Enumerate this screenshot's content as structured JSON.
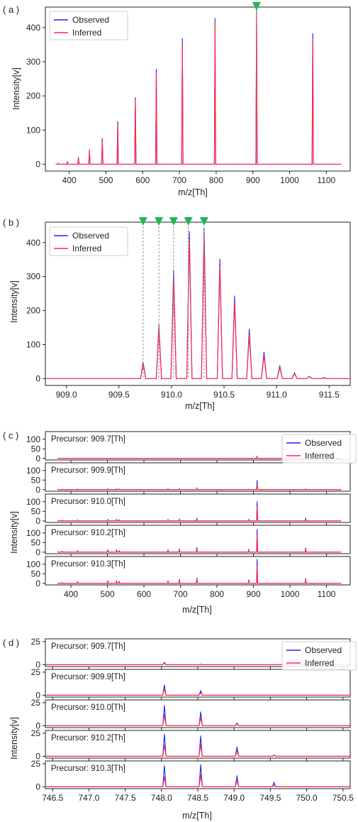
{
  "colors": {
    "observed": "#1f1fff",
    "inferred": "#ff2a4a",
    "marker": "#1db954",
    "frame": "#222222"
  },
  "chart_data": [
    {
      "id": "a",
      "panel_label": "( a )",
      "type": "line",
      "xlabel": "m/z[Th]",
      "ylabel": "Intensity[v]",
      "xlim": [
        335,
        1165
      ],
      "ylim": [
        -20,
        460
      ],
      "xticks": [
        400,
        500,
        600,
        700,
        800,
        900,
        1000,
        1100
      ],
      "yticks": [
        0,
        100,
        200,
        300,
        400
      ],
      "legend": {
        "entries": [
          "Observed",
          "Inferred"
        ],
        "loc": "upper-left"
      },
      "baseline_range": [
        363,
        1140
      ],
      "peak_width": 1.8,
      "markers": [
        910
      ],
      "series": [
        {
          "name": "Observed",
          "peaks": [
            [
              370,
              3
            ],
            [
              395,
              8
            ],
            [
              425,
              20
            ],
            [
              455,
              42
            ],
            [
              490,
              75
            ],
            [
              532,
              125
            ],
            [
              580,
              195
            ],
            [
              637,
              278
            ],
            [
              708,
              368
            ],
            [
              797,
              427
            ],
            [
              910,
              450
            ],
            [
              1063,
              383
            ]
          ]
        },
        {
          "name": "Inferred",
          "peaks": [
            [
              370,
              3
            ],
            [
              395,
              7
            ],
            [
              425,
              18
            ],
            [
              455,
              38
            ],
            [
              490,
              70
            ],
            [
              532,
              115
            ],
            [
              580,
              185
            ],
            [
              637,
              265
            ],
            [
              708,
              350
            ],
            [
              797,
              415
            ],
            [
              910,
              440
            ],
            [
              1063,
              365
            ]
          ]
        }
      ]
    },
    {
      "id": "b",
      "panel_label": "( b )",
      "type": "line",
      "xlabel": "m/z[Th]",
      "ylabel": "Intensity[v]",
      "xlim": [
        908.8,
        911.7
      ],
      "ylim": [
        -20,
        460
      ],
      "xticks": [
        909.0,
        909.5,
        910.0,
        910.5,
        911.0,
        911.5
      ],
      "yticks": [
        0,
        100,
        200,
        300,
        400
      ],
      "legend": {
        "entries": [
          "Observed",
          "Inferred"
        ],
        "loc": "upper-left"
      },
      "baseline_range": [
        908.8,
        911.7
      ],
      "peak_width": 0.025,
      "markers": [
        909.73,
        909.88,
        910.02,
        910.16,
        910.31
      ],
      "series": [
        {
          "name": "Observed",
          "peaks": [
            [
              909.73,
              48
            ],
            [
              909.88,
              158
            ],
            [
              910.02,
              320
            ],
            [
              910.17,
              432
            ],
            [
              910.31,
              440
            ],
            [
              910.46,
              352
            ],
            [
              910.6,
              243
            ],
            [
              910.74,
              145
            ],
            [
              910.88,
              78
            ],
            [
              911.03,
              38
            ],
            [
              911.17,
              17
            ],
            [
              911.31,
              7
            ],
            [
              911.45,
              3
            ]
          ]
        },
        {
          "name": "Inferred",
          "peaks": [
            [
              909.73,
              42
            ],
            [
              909.88,
              150
            ],
            [
              910.02,
              295
            ],
            [
              910.17,
              405
            ],
            [
              910.31,
              418
            ],
            [
              910.46,
              330
            ],
            [
              910.6,
              225
            ],
            [
              910.74,
              128
            ],
            [
              910.88,
              68
            ],
            [
              911.03,
              33
            ],
            [
              911.17,
              15
            ],
            [
              911.31,
              6
            ],
            [
              911.45,
              2
            ]
          ]
        }
      ]
    },
    {
      "id": "c",
      "panel_label": "( c )",
      "type": "line",
      "xlabel": "m/z[Th]",
      "ylabel": "Intensity[v]",
      "xlim": [
        330,
        1165
      ],
      "ylim": [
        -8,
        140
      ],
      "xticks": [
        400,
        500,
        600,
        700,
        800,
        900,
        1000,
        1100
      ],
      "yticks": [
        0,
        50,
        100
      ],
      "legend": {
        "entries": [
          "Observed",
          "Inferred"
        ],
        "loc": "upper-right"
      },
      "baseline_range": [
        363,
        1140
      ],
      "peak_width": 1.5,
      "subplots": [
        {
          "precursor": "Precursor: 909.7[Th]",
          "series": [
            {
              "name": "Observed",
              "peaks": [
                [
                  910,
                  12
                ]
              ]
            },
            {
              "name": "Inferred",
              "peaks": [
                [
                  910,
                  10
                ]
              ]
            }
          ]
        },
        {
          "precursor": "Precursor: 909.9[Th]",
          "series": [
            {
              "name": "Observed",
              "peaks": [
                [
                  376,
                  3
                ],
                [
                  418,
                  4
                ],
                [
                  501,
                  5
                ],
                [
                  525,
                  5
                ],
                [
                  532,
                  4
                ],
                [
                  666,
                  5
                ],
                [
                  697,
                  6
                ],
                [
                  745,
                  10
                ],
                [
                  887,
                  3
                ],
                [
                  910,
                  48
                ],
                [
                  1043,
                  5
                ]
              ]
            },
            {
              "name": "Inferred",
              "peaks": [
                [
                  376,
                  2
                ],
                [
                  418,
                  3
                ],
                [
                  501,
                  4
                ],
                [
                  525,
                  4
                ],
                [
                  532,
                  3
                ],
                [
                  666,
                  4
                ],
                [
                  697,
                  5
                ],
                [
                  745,
                  7
                ],
                [
                  887,
                  2
                ],
                [
                  910,
                  28
                ],
                [
                  1043,
                  4
                ]
              ]
            }
          ]
        },
        {
          "precursor": "Precursor: 910.0[Th]",
          "series": [
            {
              "name": "Observed",
              "peaks": [
                [
                  376,
                  4
                ],
                [
                  418,
                  6
                ],
                [
                  501,
                  8
                ],
                [
                  525,
                  9
                ],
                [
                  532,
                  6
                ],
                [
                  666,
                  8
                ],
                [
                  697,
                  10
                ],
                [
                  745,
                  15
                ],
                [
                  887,
                  8
                ],
                [
                  910,
                  100
                ],
                [
                  1043,
                  15
                ]
              ]
            },
            {
              "name": "Inferred",
              "peaks": [
                [
                  376,
                  3
                ],
                [
                  418,
                  5
                ],
                [
                  501,
                  6
                ],
                [
                  525,
                  7
                ],
                [
                  532,
                  5
                ],
                [
                  666,
                  6
                ],
                [
                  697,
                  8
                ],
                [
                  745,
                  11
                ],
                [
                  887,
                  6
                ],
                [
                  910,
                  75
                ],
                [
                  1043,
                  11
                ]
              ]
            }
          ]
        },
        {
          "precursor": "Precursor: 910.2[Th]",
          "series": [
            {
              "name": "Observed",
              "peaks": [
                [
                  376,
                  5
                ],
                [
                  418,
                  8
                ],
                [
                  501,
                  12
                ],
                [
                  525,
                  13
                ],
                [
                  532,
                  9
                ],
                [
                  666,
                  12
                ],
                [
                  697,
                  17
                ],
                [
                  745,
                  25
                ],
                [
                  887,
                  15
                ],
                [
                  910,
                  118
                ],
                [
                  1043,
                  22
                ]
              ]
            },
            {
              "name": "Inferred",
              "peaks": [
                [
                  376,
                  4
                ],
                [
                  418,
                  6
                ],
                [
                  501,
                  9
                ],
                [
                  525,
                  10
                ],
                [
                  532,
                  7
                ],
                [
                  666,
                  9
                ],
                [
                  697,
                  13
                ],
                [
                  745,
                  18
                ],
                [
                  887,
                  11
                ],
                [
                  910,
                  88
                ],
                [
                  1043,
                  16
                ]
              ]
            }
          ]
        },
        {
          "precursor": "Precursor: 910.3[Th]",
          "series": [
            {
              "name": "Observed",
              "peaks": [
                [
                  376,
                  6
                ],
                [
                  418,
                  9
                ],
                [
                  501,
                  14
                ],
                [
                  525,
                  15
                ],
                [
                  532,
                  11
                ],
                [
                  666,
                  14
                ],
                [
                  697,
                  20
                ],
                [
                  745,
                  28
                ],
                [
                  887,
                  18
                ],
                [
                  910,
                  125
                ],
                [
                  1043,
                  25
                ]
              ]
            },
            {
              "name": "Inferred",
              "peaks": [
                [
                  376,
                  5
                ],
                [
                  418,
                  7
                ],
                [
                  501,
                  11
                ],
                [
                  525,
                  12
                ],
                [
                  532,
                  8
                ],
                [
                  666,
                  11
                ],
                [
                  697,
                  15
                ],
                [
                  745,
                  21
                ],
                [
                  887,
                  13
                ],
                [
                  910,
                  92
                ],
                [
                  1043,
                  19
                ]
              ]
            }
          ]
        }
      ]
    },
    {
      "id": "d",
      "panel_label": "( d )",
      "type": "line",
      "xlabel": "m/z[Th]",
      "ylabel": "Intensity[v]",
      "xlim": [
        746.4,
        750.6
      ],
      "ylim": [
        -2,
        28
      ],
      "xticks": [
        746.5,
        747.0,
        747.5,
        748.0,
        748.5,
        749.0,
        749.5,
        750.0,
        750.5
      ],
      "yticks": [
        0,
        25
      ],
      "legend": {
        "entries": [
          "Observed",
          "Inferred"
        ],
        "loc": "upper-right"
      },
      "baseline_range": [
        746.4,
        750.6
      ],
      "peak_width": 0.022,
      "subplots": [
        {
          "precursor": "Precursor: 909.7[Th]",
          "series": [
            {
              "name": "Observed",
              "peaks": [
                [
                  748.04,
                  2.5
                ],
                [
                  748.54,
                  0.6
                ]
              ]
            },
            {
              "name": "Inferred",
              "peaks": [
                [
                  748.04,
                  1.5
                ],
                [
                  748.54,
                  0.4
                ]
              ]
            }
          ]
        },
        {
          "precursor": "Precursor: 909.9[Th]",
          "series": [
            {
              "name": "Observed",
              "peaks": [
                [
                  748.04,
                  11
                ],
                [
                  748.54,
                  5
                ]
              ]
            },
            {
              "name": "Inferred",
              "peaks": [
                [
                  748.04,
                  7
                ],
                [
                  748.54,
                  3
                ]
              ]
            }
          ]
        },
        {
          "precursor": "Precursor: 910.0[Th]",
          "series": [
            {
              "name": "Observed",
              "peaks": [
                [
                  748.04,
                  22
                ],
                [
                  748.54,
                  15
                ],
                [
                  749.04,
                  3
                ]
              ]
            },
            {
              "name": "Inferred",
              "peaks": [
                [
                  748.04,
                  12
                ],
                [
                  748.54,
                  9
                ],
                [
                  749.04,
                  2
                ]
              ]
            }
          ]
        },
        {
          "precursor": "Precursor: 910.2[Th]",
          "series": [
            {
              "name": "Observed",
              "peaks": [
                [
                  748.04,
                  24
                ],
                [
                  748.54,
                  22
                ],
                [
                  749.04,
                  10
                ],
                [
                  749.55,
                  1.5
                ]
              ]
            },
            {
              "name": "Inferred",
              "peaks": [
                [
                  748.04,
                  12
                ],
                [
                  748.54,
                  13
                ],
                [
                  749.04,
                  6
                ],
                [
                  749.55,
                  1
                ]
              ]
            }
          ]
        },
        {
          "precursor": "Precursor: 910.3[Th]",
          "series": [
            {
              "name": "Observed",
              "peaks": [
                [
                  748.04,
                  23
                ],
                [
                  748.54,
                  24
                ],
                [
                  749.04,
                  12
                ],
                [
                  749.55,
                  5
                ]
              ]
            },
            {
              "name": "Inferred",
              "peaks": [
                [
                  748.04,
                  11
                ],
                [
                  748.54,
                  13
                ],
                [
                  749.04,
                  7
                ],
                [
                  749.55,
                  2
                ]
              ]
            }
          ]
        }
      ]
    }
  ]
}
